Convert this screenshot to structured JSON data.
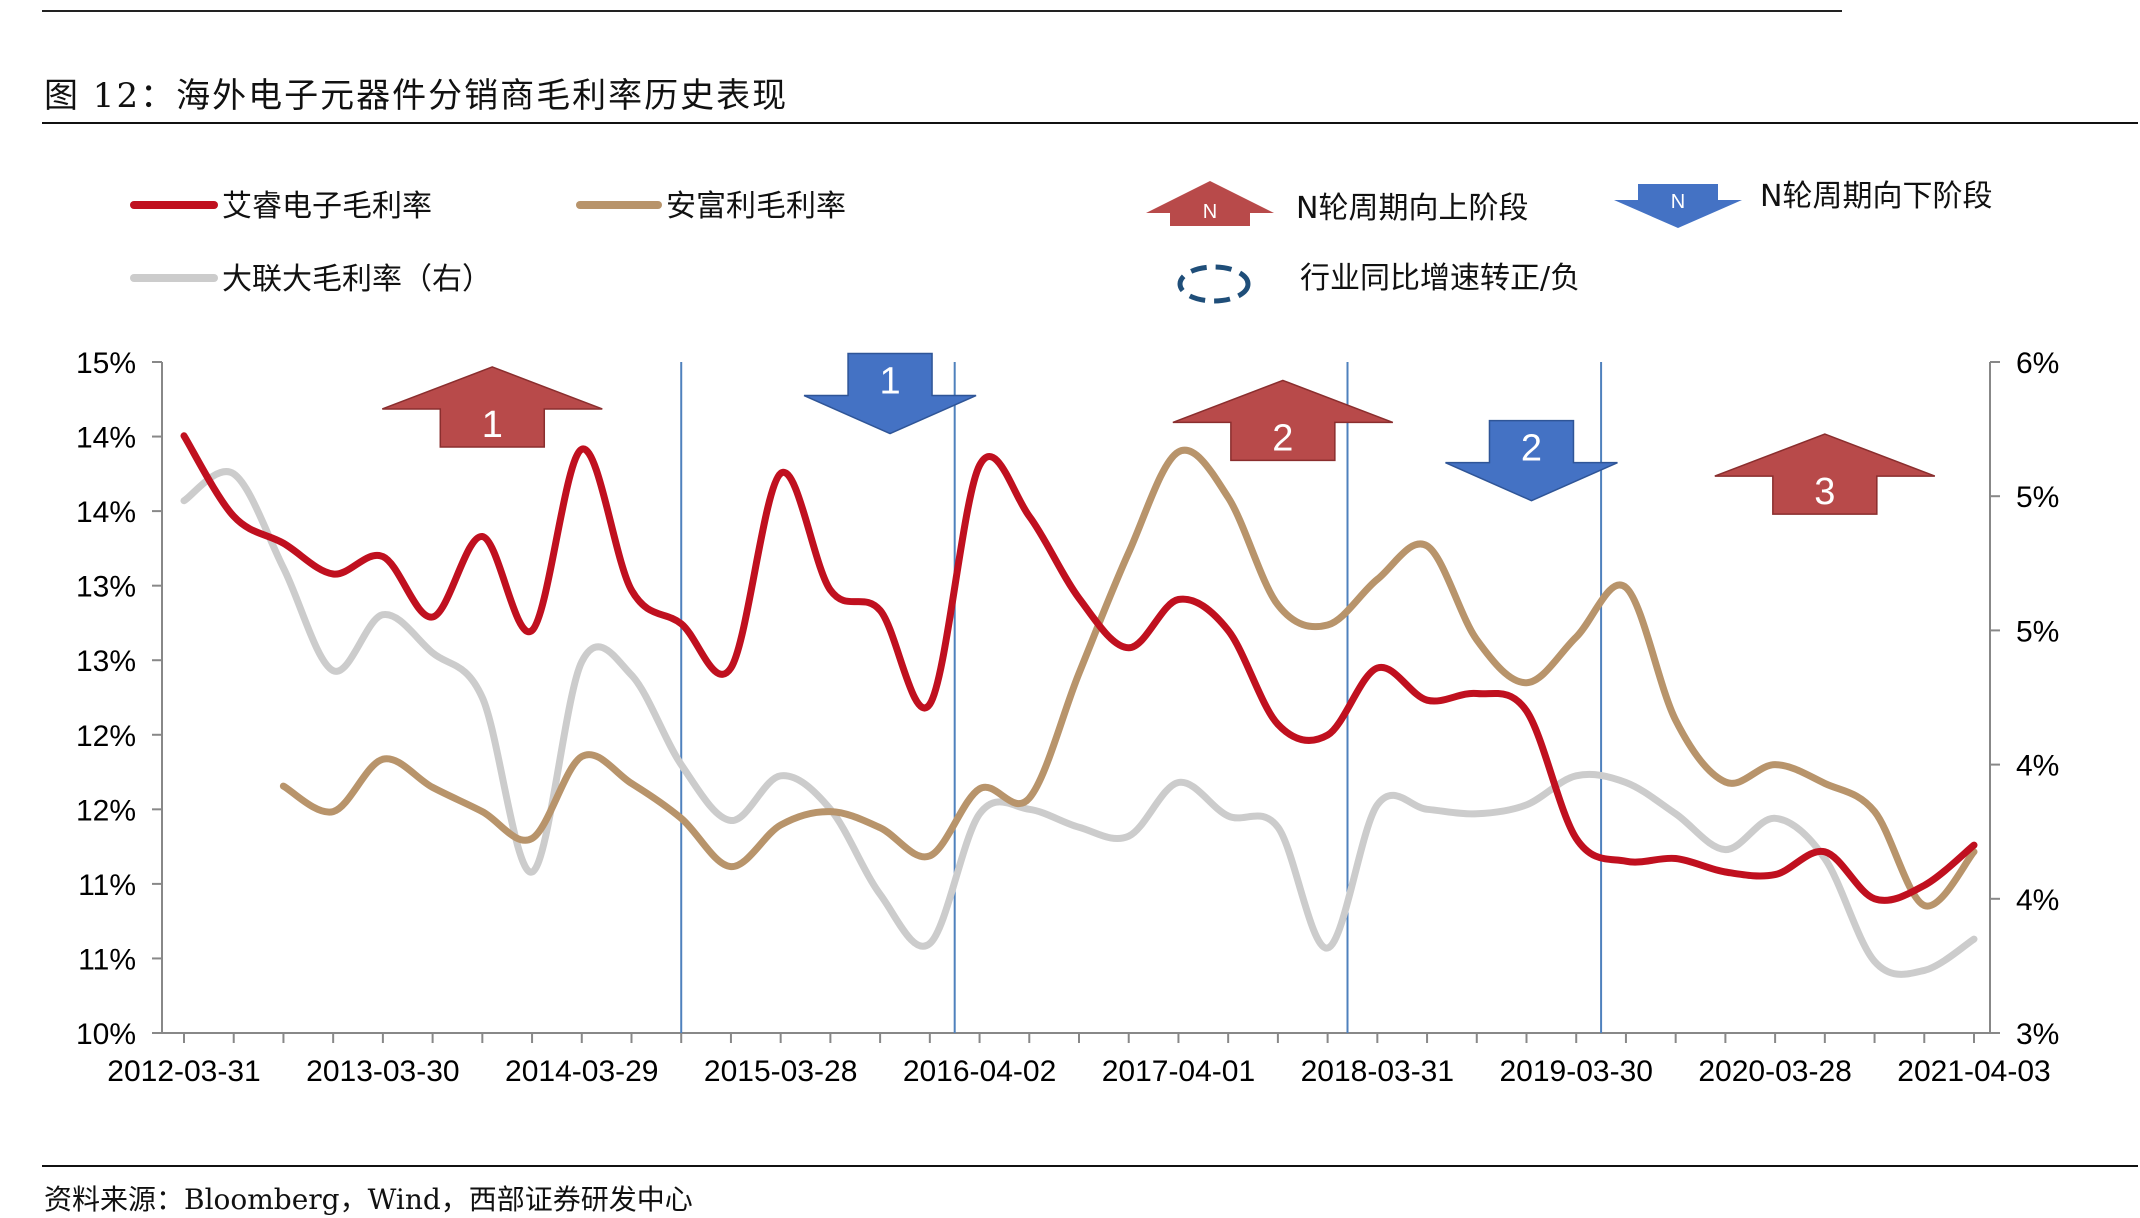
{
  "figure": {
    "title": "图 12：海外电子元器件分销商毛利率历史表现",
    "source": "资料来源：Bloomberg，Wind，西部证券研发中心"
  },
  "legend": {
    "avnet": "艾睿电子毛利率",
    "arrow": "安富利毛利率",
    "wpg": "大联大毛利率（右）",
    "up_cycle": "N轮周期向上阶段",
    "down_cycle": "N轮周期向下阶段",
    "turn": "行业同比增速转正/负",
    "arrow_marker_label": "N"
  },
  "colors": {
    "red_series": "#C0101F",
    "tan_series": "#B8946B",
    "gray_series": "#CCCCCC",
    "up_arrow": "#B84A4A",
    "down_arrow": "#4472C4",
    "vline": "#4F81BD",
    "axis": "#888888"
  },
  "chart_data": {
    "type": "line",
    "x_tick_labels": [
      "2012-03-31",
      "2013-03-30",
      "2014-03-29",
      "2015-03-28",
      "2016-04-02",
      "2017-04-01",
      "2018-03-31",
      "2019-03-30",
      "2020-03-28",
      "2021-04-03"
    ],
    "y_left_tick_labels": [
      "10%",
      "11%",
      "11%",
      "12%",
      "12%",
      "13%",
      "13%",
      "14%",
      "14%",
      "15%"
    ],
    "y_right_tick_labels": [
      "3%",
      "4%",
      "4%",
      "5%",
      "5%",
      "6%"
    ],
    "ylim_left": [
      10,
      15
    ],
    "ylim_right": [
      3,
      6
    ],
    "x_quarters": 37,
    "series": [
      {
        "name": "艾睿电子毛利率",
        "axis": "left",
        "x": [
          0,
          1,
          2,
          3,
          4,
          5,
          6,
          7,
          8,
          9,
          10,
          11,
          12,
          13,
          14,
          15,
          16,
          17,
          18,
          19,
          20,
          21,
          22,
          23,
          24,
          25,
          26,
          27,
          28,
          29,
          30,
          31,
          32,
          33,
          34,
          35,
          36
        ],
        "values": [
          14.45,
          13.85,
          13.65,
          13.42,
          13.55,
          13.1,
          13.7,
          13.0,
          14.35,
          13.3,
          13.05,
          12.72,
          14.17,
          13.3,
          13.15,
          12.45,
          14.23,
          13.85,
          13.24,
          12.87,
          13.23,
          13.0,
          12.3,
          12.22,
          12.72,
          12.48,
          12.53,
          12.4,
          11.45,
          11.28,
          11.3,
          11.2,
          11.18,
          11.35,
          11.0,
          11.1,
          11.4
        ]
      },
      {
        "name": "安富利毛利率",
        "axis": "left",
        "x": [
          2,
          3,
          4,
          5,
          6,
          7,
          8,
          9,
          10,
          11,
          12,
          13,
          14,
          15,
          16,
          17,
          18,
          19,
          20,
          21,
          22,
          23,
          24,
          25,
          26,
          27,
          28,
          29,
          30,
          31,
          32,
          33,
          34,
          35,
          36
        ],
        "values": [
          11.84,
          11.65,
          12.04,
          11.83,
          11.65,
          11.45,
          12.06,
          11.86,
          11.6,
          11.24,
          11.55,
          11.65,
          11.53,
          11.32,
          11.82,
          11.75,
          12.68,
          13.58,
          14.33,
          13.99,
          13.19,
          13.04,
          13.38,
          13.63,
          12.93,
          12.61,
          12.95,
          13.32,
          12.33,
          11.87,
          12.0,
          11.86,
          11.65,
          10.95,
          11.35
        ]
      },
      {
        "name": "大联大毛利率（右）",
        "axis": "right",
        "x": [
          0,
          1,
          2,
          3,
          4,
          5,
          6,
          7,
          8,
          9,
          10,
          11,
          12,
          13,
          14,
          15,
          16,
          17,
          18,
          19,
          20,
          21,
          22,
          23,
          24,
          25,
          26,
          27,
          28,
          29,
          30,
          31,
          32,
          33,
          34,
          35,
          36
        ],
        "values": [
          5.38,
          5.5,
          5.08,
          4.62,
          4.87,
          4.7,
          4.5,
          3.72,
          4.66,
          4.6,
          4.2,
          3.95,
          4.15,
          4.0,
          3.62,
          3.4,
          3.98,
          4.0,
          3.92,
          3.88,
          4.12,
          3.97,
          3.92,
          3.38,
          4.02,
          4.0,
          3.98,
          4.02,
          4.15,
          4.12,
          3.98,
          3.82,
          3.96,
          3.78,
          3.32,
          3.28,
          3.42
        ]
      }
    ],
    "turn_lines_x": [
      10,
      15.5,
      23.4,
      28.5
    ],
    "cycle_arrows": [
      {
        "direction": "up",
        "label": "1",
        "x": 6.2,
        "y": 14.65
      },
      {
        "direction": "down",
        "label": "1",
        "x": 14.2,
        "y": 14.75
      },
      {
        "direction": "up",
        "label": "2",
        "x": 22.1,
        "y": 14.55
      },
      {
        "direction": "down",
        "label": "2",
        "x": 27.1,
        "y": 14.25
      },
      {
        "direction": "up",
        "label": "3",
        "x": 33.0,
        "y": 14.15
      }
    ],
    "grid": false,
    "legend_position": "top"
  }
}
